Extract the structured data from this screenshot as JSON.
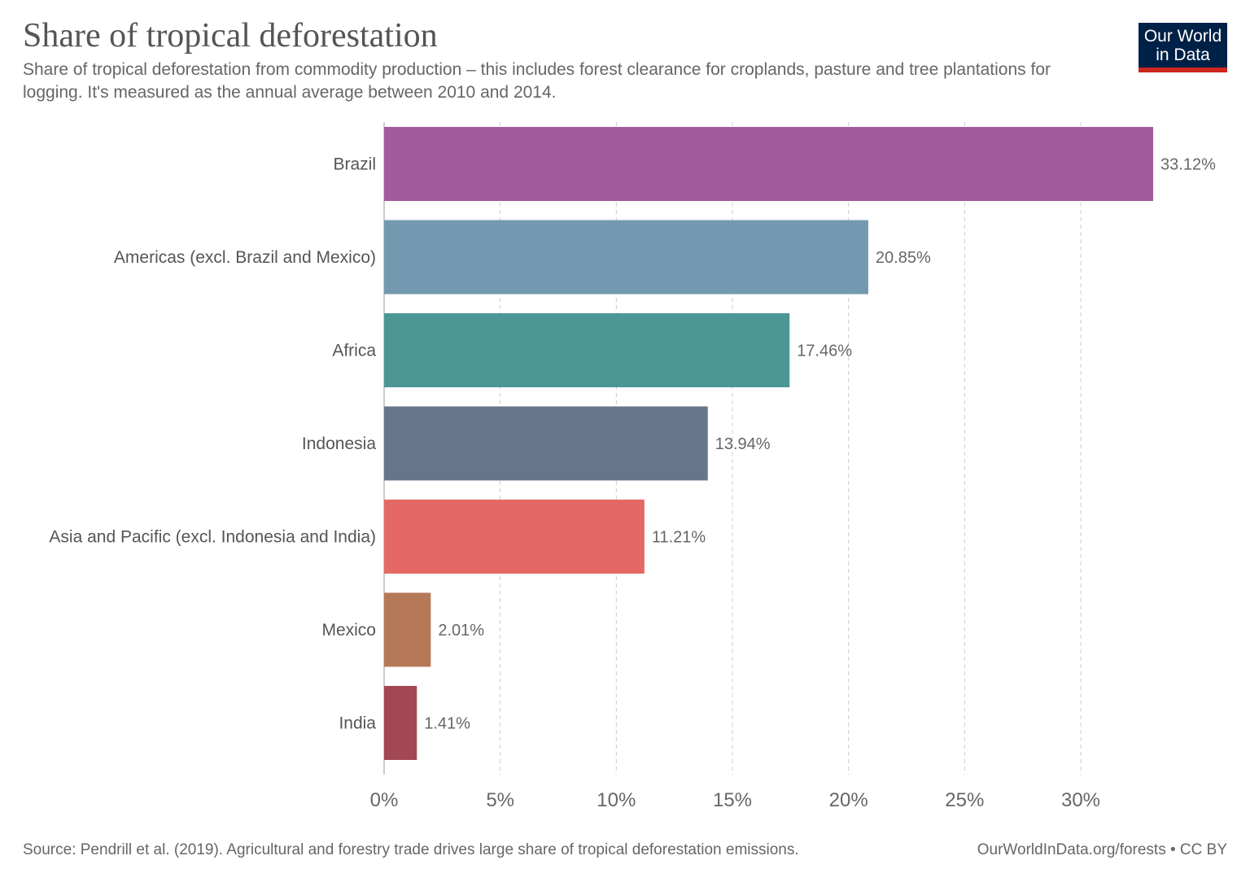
{
  "header": {
    "title": "Share of tropical deforestation",
    "subtitle": "Share of tropical deforestation from commodity production – this includes forest clearance for croplands, pasture and tree plantations for logging. It's measured as the annual average between 2010 and 2014.",
    "logo_line1": "Our World",
    "logo_line2": "in Data"
  },
  "footer": {
    "source": "Source: Pendrill et al. (2019). Agricultural and forestry trade drives large share of tropical deforestation emissions.",
    "credit": "OurWorldInData.org/forests • CC BY"
  },
  "colors": {
    "logo_bg": "#002147",
    "logo_accent": "#ce261e"
  },
  "chart_data": {
    "type": "bar",
    "orientation": "horizontal",
    "title": "Share of tropical deforestation",
    "categories": [
      "Brazil",
      "Americas (excl. Brazil and Mexico)",
      "Africa",
      "Indonesia",
      "Asia and Pacific (excl. Indonesia and India)",
      "Mexico",
      "India"
    ],
    "values": [
      33.12,
      20.85,
      17.46,
      13.94,
      11.21,
      2.01,
      1.41
    ],
    "value_labels": [
      "33.12%",
      "20.85%",
      "17.46%",
      "13.94%",
      "11.21%",
      "2.01%",
      "1.41%"
    ],
    "colors": [
      "#a25b9c",
      "#7399b0",
      "#4c9696",
      "#67758b",
      "#e46964",
      "#b57958",
      "#a34752"
    ],
    "xlim": [
      0,
      33.12
    ],
    "xticks": [
      0,
      5,
      10,
      15,
      20,
      25,
      30
    ],
    "xtick_labels": [
      "0%",
      "5%",
      "10%",
      "15%",
      "20%",
      "25%",
      "30%"
    ],
    "grid": "vertical dashed",
    "legend": "none"
  }
}
